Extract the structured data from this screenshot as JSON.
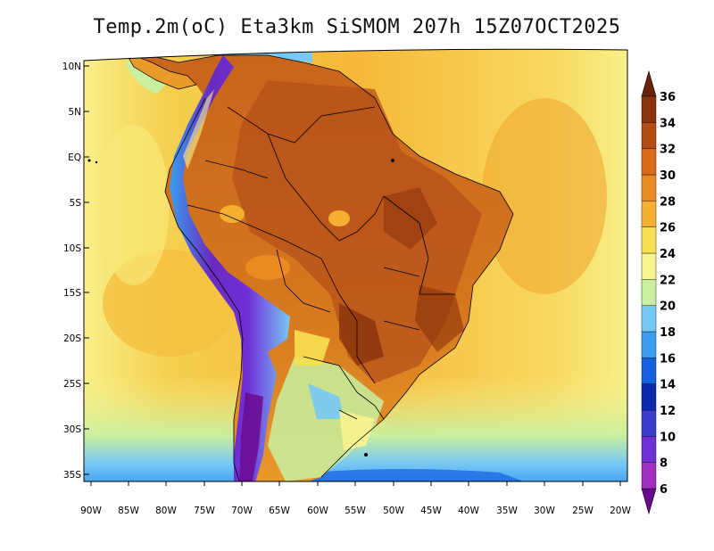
{
  "title": "Temp.2m(oC) Eta3km SiSMOM 207h 15Z07OCT2025",
  "map": {
    "variable": "2 m air temperature",
    "units": "oC",
    "region": "South America",
    "lat_labels": [
      "10N",
      "5N",
      "EQ",
      "5S",
      "10S",
      "15S",
      "20S",
      "25S",
      "30S",
      "35S"
    ],
    "lon_labels": [
      "90W",
      "85W",
      "80W",
      "75W",
      "70W",
      "65W",
      "60W",
      "55W",
      "50W",
      "45W",
      "40W",
      "35W",
      "30W",
      "25W",
      "20W"
    ]
  },
  "colorbar": {
    "levels": [
      6,
      8,
      10,
      12,
      14,
      16,
      18,
      20,
      22,
      24,
      26,
      28,
      30,
      32,
      34,
      36
    ],
    "colors": [
      "#6a0a8f",
      "#a030c0",
      "#7030d8",
      "#3a3ad0",
      "#0a2ab0",
      "#1560e0",
      "#3a9ef0",
      "#78c8f5",
      "#c8f0a0",
      "#f8f590",
      "#f8e050",
      "#f5b030",
      "#ea8a20",
      "#d86a18",
      "#b54c12",
      "#8a320c",
      "#6a220a"
    ]
  },
  "palette": {
    "ocean_warm": "#f5c040",
    "ocean_mid": "#f8e060",
    "ocean_cool": "#f8f08a",
    "land_hot": "#d06a1c",
    "land_very_hot": "#a84a14",
    "andes": "#6a2ac0",
    "coast_line": "#000000"
  }
}
